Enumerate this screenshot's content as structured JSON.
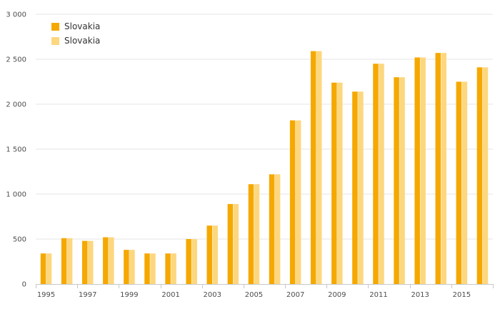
{
  "chart_data": {
    "type": "bar",
    "categories": [
      "1995",
      "1996",
      "1997",
      "1998",
      "1999",
      "2000",
      "2001",
      "2002",
      "2003",
      "2004",
      "2005",
      "2006",
      "2007",
      "2008",
      "2009",
      "2010",
      "2011",
      "2012",
      "2013",
      "2014",
      "2015",
      "2016"
    ],
    "x_tick_labels": [
      "1995",
      "1997",
      "1999",
      "2001",
      "2003",
      "2005",
      "2007",
      "2009",
      "2011",
      "2013",
      "2015"
    ],
    "series": [
      {
        "name": "Slovakia",
        "color": "#f5a800",
        "values": [
          340,
          510,
          480,
          520,
          380,
          340,
          340,
          500,
          650,
          890,
          1110,
          1220,
          1820,
          2590,
          2240,
          2140,
          2450,
          2300,
          2520,
          2570,
          2250,
          2410
        ]
      },
      {
        "name": "Slovakia",
        "color": "#fdd77e",
        "values": [
          340,
          510,
          480,
          520,
          380,
          340,
          340,
          500,
          650,
          890,
          1110,
          1220,
          1820,
          2590,
          2240,
          2140,
          2450,
          2300,
          2520,
          2570,
          2250,
          2410
        ]
      }
    ],
    "ylim": [
      0,
      3000
    ],
    "yticks": [
      0,
      500,
      1000,
      1500,
      2000,
      2500,
      3000
    ],
    "ytick_labels": [
      "0",
      "500",
      "1 000",
      "1 500",
      "2 000",
      "2 500",
      "3 000"
    ],
    "grid": true,
    "legend_position": "top-left"
  }
}
